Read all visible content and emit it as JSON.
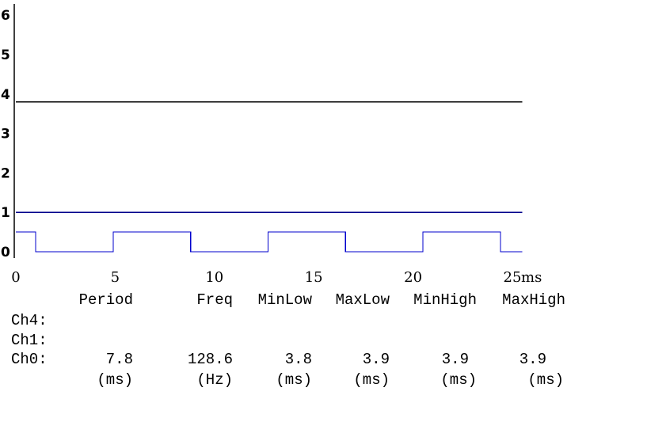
{
  "chart_data": {
    "type": "line",
    "title": "",
    "xlabel": "",
    "ylabel": "",
    "x_unit": "ms",
    "xlim": [
      0,
      25
    ],
    "ylim": [
      0,
      6
    ],
    "x_ticks": [
      "0",
      "5",
      "10",
      "15",
      "20",
      "25"
    ],
    "y_ticks": [
      "0",
      "1",
      "2",
      "3",
      "4",
      "5",
      "6"
    ],
    "grid": false,
    "series": [
      {
        "name": "Ch4",
        "color": "#000000",
        "x": [
          0,
          25.5
        ],
        "y": [
          3.8,
          3.8
        ]
      },
      {
        "name": "Ch1",
        "color": "#00008b",
        "x": [
          0,
          25.5
        ],
        "y": [
          1.0,
          1.0
        ]
      },
      {
        "name": "Ch0",
        "color": "#0000cd",
        "x": [
          0,
          1.0,
          1.0,
          4.9,
          4.9,
          8.8,
          8.8,
          12.7,
          12.7,
          16.6,
          16.6,
          20.5,
          20.5,
          24.4,
          24.4,
          25.5
        ],
        "y": [
          0.5,
          0.5,
          0,
          0,
          0.5,
          0.5,
          0,
          0,
          0.5,
          0.5,
          0,
          0,
          0.5,
          0.5,
          0,
          0
        ]
      }
    ]
  },
  "stats": {
    "headers": [
      "Period",
      "Freq",
      "MinLow",
      "MaxLow",
      "MinHigh",
      "MaxHigh"
    ],
    "rows": [
      {
        "label": "Ch4:",
        "values": [
          "",
          "",
          "",
          "",
          "",
          ""
        ]
      },
      {
        "label": "Ch1:",
        "values": [
          "",
          "",
          "",
          "",
          "",
          ""
        ]
      },
      {
        "label": "Ch0:",
        "values": [
          "7.8",
          "128.6",
          "3.8",
          "3.9",
          "3.9",
          "3.9"
        ]
      }
    ],
    "units": [
      "(ms)",
      "(Hz)",
      "(ms)",
      "(ms)",
      "(ms)",
      "(ms)"
    ]
  }
}
